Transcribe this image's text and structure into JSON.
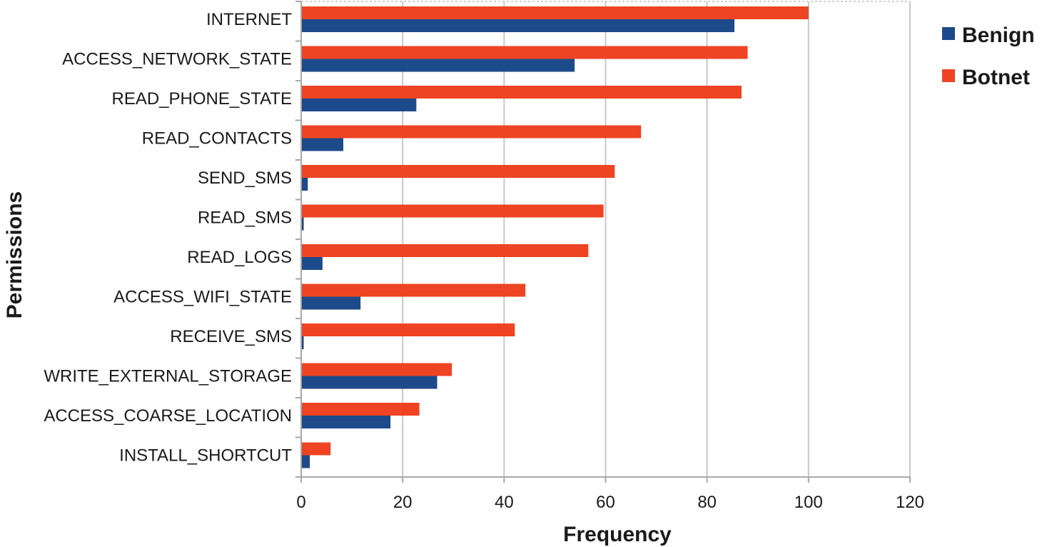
{
  "chart_data": {
    "type": "bar",
    "orientation": "horizontal",
    "xlabel": "Frequency",
    "ylabel": "Permissions",
    "xlim": [
      0,
      120
    ],
    "xticks": [
      0,
      20,
      40,
      60,
      80,
      100,
      120
    ],
    "grid": true,
    "legend_position": "top-right",
    "categories": [
      "INTERNET",
      "ACCESS_NETWORK_STATE",
      "READ_PHONE_STATE",
      "READ_CONTACTS",
      "SEND_SMS",
      "READ_SMS",
      "READ_LOGS",
      "ACCESS_WIFI_STATE",
      "RECEIVE_SMS",
      "WRITE_EXTERNAL_STORAGE",
      "ACCESS_COARSE_LOCATION",
      "INSTALL_SHORTCUT"
    ],
    "series": [
      {
        "name": "Botnet",
        "color": "#ee4423",
        "values": [
          100,
          88,
          86.8,
          67,
          61.8,
          59.6,
          56.6,
          44.2,
          42.1,
          29.7,
          23.3,
          5.8
        ]
      },
      {
        "name": "Benign",
        "color": "#1d4a8a",
        "values": [
          85.4,
          53.9,
          22.7,
          8.3,
          1.3,
          0.5,
          4.2,
          11.7,
          0.5,
          26.8,
          17.6,
          1.7
        ]
      }
    ]
  }
}
